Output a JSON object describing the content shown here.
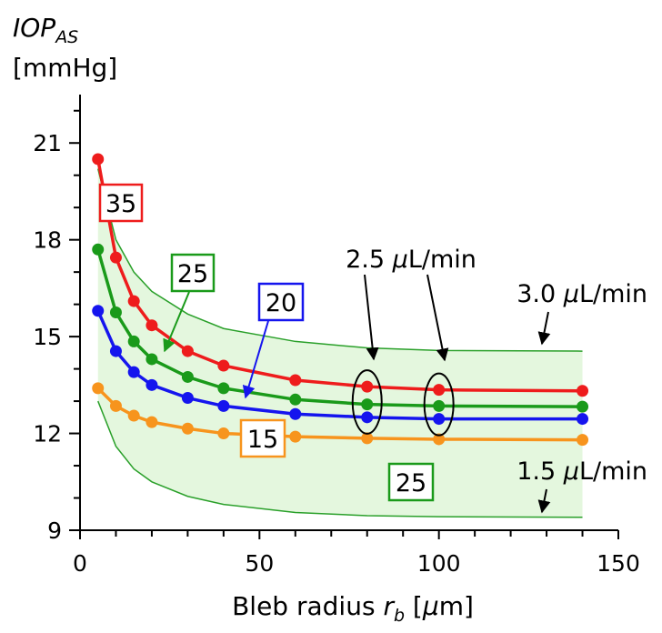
{
  "chart_data": {
    "type": "line",
    "title": "",
    "ylabel": {
      "main": "IOP",
      "sub": "AS",
      "unit": "[mmHg]"
    },
    "xlabel": {
      "prefix": "Bleb radius ",
      "var": "r",
      "sub": "b",
      "unit": " [",
      "mu": "μ",
      "unit_end": "m]"
    },
    "xlim": [
      0,
      150
    ],
    "ylim": [
      9,
      22.5
    ],
    "xticks": [
      0,
      50,
      100,
      150
    ],
    "xtick_labels": [
      "0",
      "50",
      "100",
      "150"
    ],
    "yticks": [
      9,
      12,
      15,
      18,
      21
    ],
    "ytick_labels": [
      "9",
      "12",
      "15",
      "18",
      "21"
    ],
    "x_minor_step": 10,
    "y_minor_step": 1,
    "band": {
      "color": "#e4f7de",
      "edge_color": "#2aa02a",
      "x": [
        5,
        10,
        15,
        20,
        30,
        40,
        60,
        80,
        100,
        140
      ],
      "upper": [
        20.2,
        18.0,
        17.0,
        16.4,
        15.7,
        15.25,
        14.85,
        14.65,
        14.57,
        14.55
      ],
      "lower": [
        13.0,
        11.6,
        10.9,
        10.5,
        10.05,
        9.8,
        9.55,
        9.45,
        9.42,
        9.4
      ]
    },
    "series": [
      {
        "name": "35",
        "color": "#ee1c1c",
        "x": [
          5,
          10,
          15,
          20,
          30,
          40,
          60,
          80,
          100,
          140
        ],
        "y": [
          20.5,
          17.45,
          16.1,
          15.35,
          14.55,
          14.1,
          13.65,
          13.45,
          13.35,
          13.32
        ]
      },
      {
        "name": "25",
        "color": "#1a9a1a",
        "x": [
          5,
          10,
          15,
          20,
          30,
          40,
          60,
          80,
          100,
          140
        ],
        "y": [
          17.7,
          15.75,
          14.85,
          14.3,
          13.75,
          13.4,
          13.05,
          12.9,
          12.85,
          12.83
        ]
      },
      {
        "name": "20",
        "color": "#1515ee",
        "x": [
          5,
          10,
          15,
          20,
          30,
          40,
          60,
          80,
          100,
          140
        ],
        "y": [
          15.8,
          14.55,
          13.9,
          13.5,
          13.1,
          12.85,
          12.6,
          12.5,
          12.45,
          12.45
        ]
      },
      {
        "name": "15",
        "color": "#f7941d",
        "x": [
          5,
          10,
          15,
          20,
          30,
          40,
          60,
          80,
          100,
          140
        ],
        "y": [
          13.4,
          12.85,
          12.55,
          12.35,
          12.15,
          12.0,
          11.9,
          11.85,
          11.82,
          11.8
        ]
      }
    ],
    "labels": {
      "box_35": "35",
      "box_25_upper": "25",
      "box_20": "20",
      "box_15": "15",
      "box_25_lower": "25",
      "flow_2_5": {
        "value": "2.5 ",
        "mu": "μ",
        "unit": "L/min"
      },
      "flow_3_0": {
        "value": "3.0 ",
        "mu": "μ",
        "unit": "L/min"
      },
      "flow_1_5": {
        "value": "1.5 ",
        "mu": "μ",
        "unit": "L/min"
      }
    },
    "ellipse_x": [
      80,
      100
    ]
  }
}
